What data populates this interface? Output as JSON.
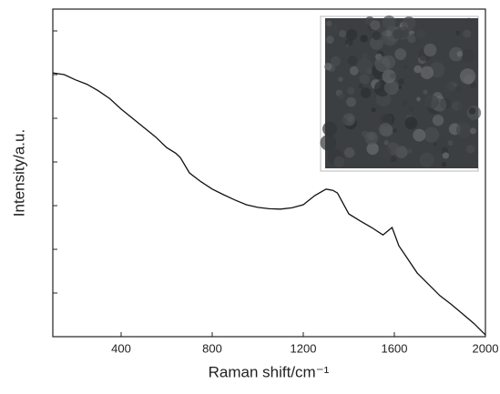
{
  "chart_data": {
    "type": "line",
    "x_label": "Raman shift/cm⁻¹",
    "y_label": "Intensity/a.u.",
    "x": [
      100,
      150,
      200,
      250,
      300,
      350,
      400,
      450,
      500,
      550,
      600,
      640,
      660,
      700,
      750,
      800,
      850,
      900,
      950,
      1000,
      1050,
      1100,
      1150,
      1200,
      1250,
      1300,
      1330,
      1350,
      1400,
      1450,
      1500,
      1550,
      1590,
      1620,
      1650,
      1700,
      1750,
      1800,
      1850,
      1900,
      1950,
      2000
    ],
    "series": [
      {
        "color": "#111111",
        "values": [
          6.04,
          6.0,
          5.88,
          5.78,
          5.63,
          5.45,
          5.21,
          5.0,
          4.79,
          4.58,
          4.33,
          4.2,
          4.1,
          3.75,
          3.55,
          3.38,
          3.25,
          3.13,
          3.02,
          2.96,
          2.93,
          2.92,
          2.95,
          3.02,
          3.23,
          3.38,
          3.35,
          3.29,
          2.81,
          2.65,
          2.5,
          2.33,
          2.5,
          2.08,
          1.85,
          1.46,
          1.2,
          0.94,
          0.74,
          0.52,
          0.3,
          0.04
        ]
      }
    ],
    "xlim": [
      100,
      2000
    ],
    "ylim": [
      0,
      7.5
    ],
    "xticks": [
      400,
      800,
      1200,
      1600,
      2000
    ],
    "yticks": [
      1,
      2,
      3,
      4,
      5,
      6,
      7
    ]
  }
}
